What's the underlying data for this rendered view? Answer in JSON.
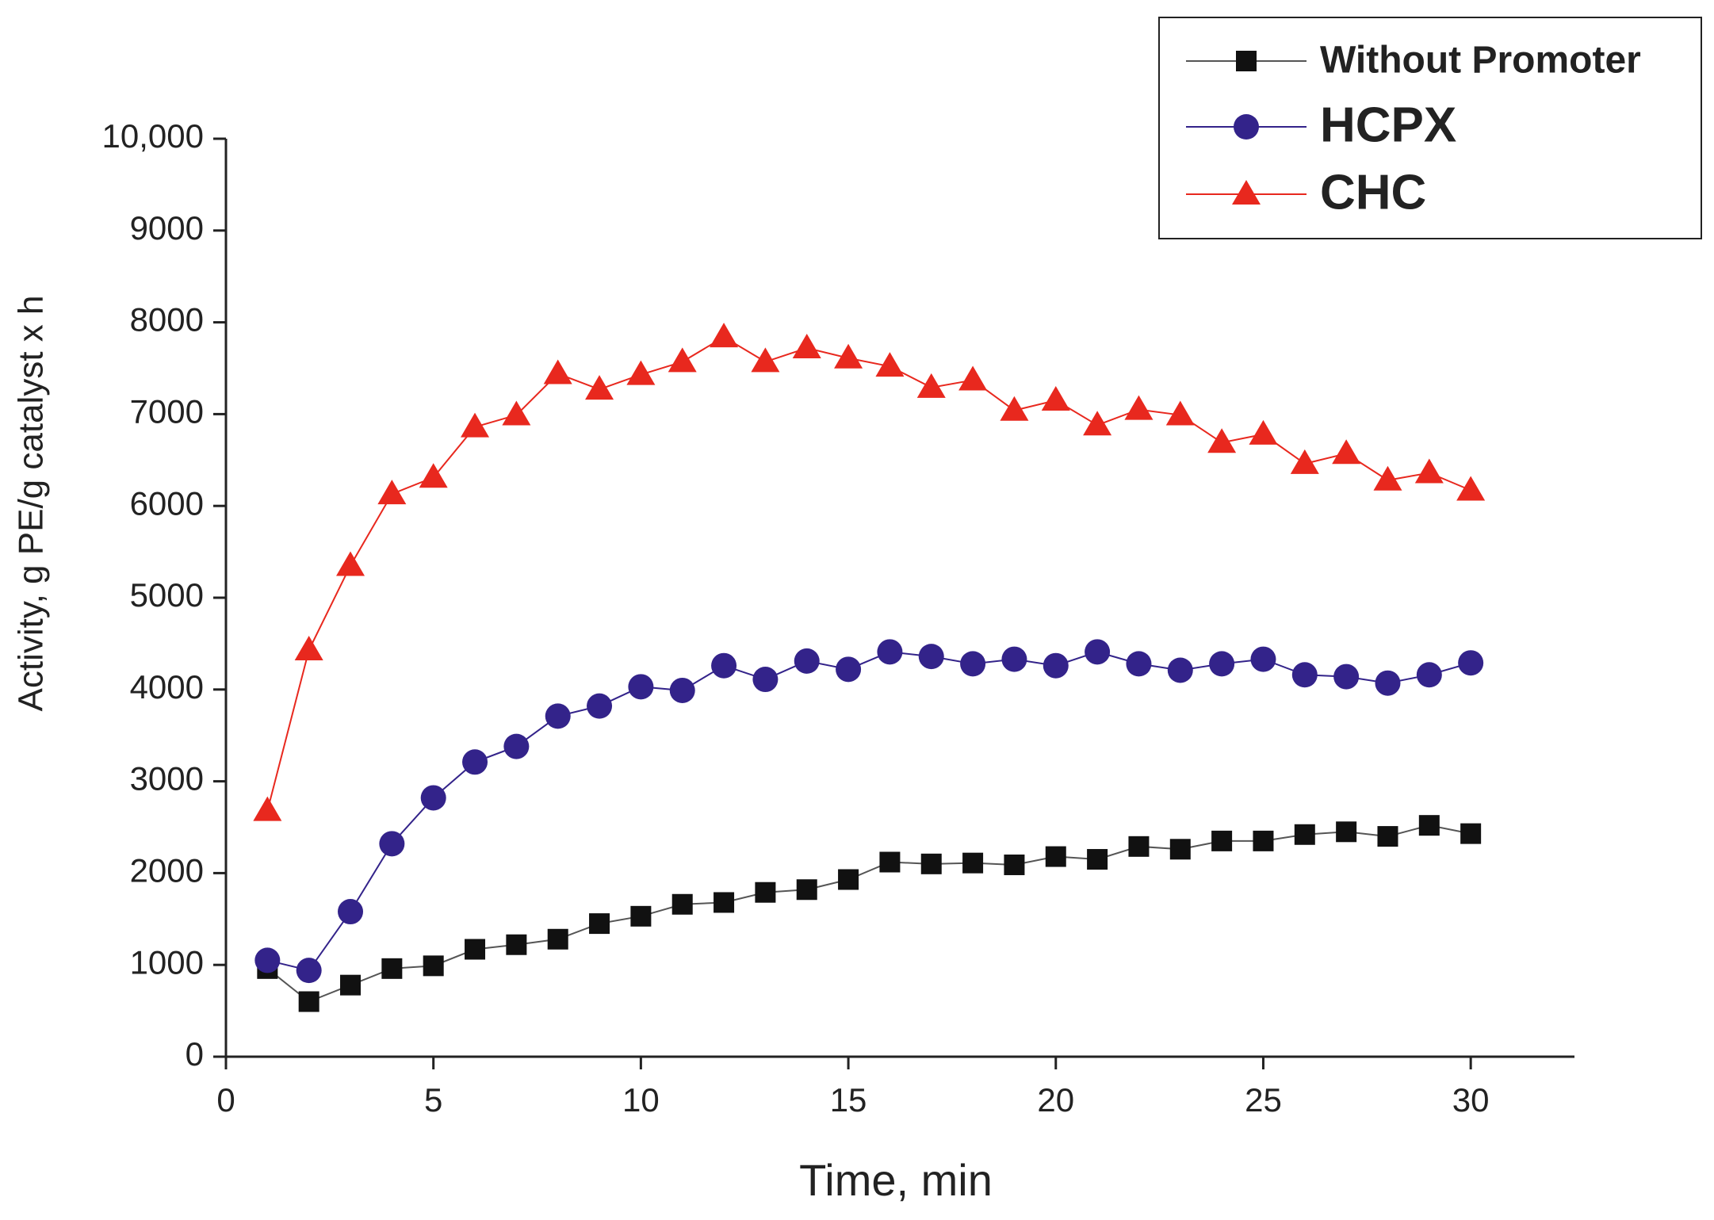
{
  "chart_data": {
    "type": "line",
    "xlabel": "Time, min",
    "ylabel": "Activity, g PE/g catalyst x h",
    "x": [
      1,
      2,
      3,
      4,
      5,
      6,
      7,
      8,
      9,
      10,
      11,
      12,
      13,
      14,
      15,
      16,
      17,
      18,
      19,
      20,
      21,
      22,
      23,
      24,
      25,
      26,
      27,
      28,
      29,
      30
    ],
    "series": [
      {
        "name": "Without Promoter",
        "color": "#111111",
        "marker": "square",
        "values": [
          960,
          600,
          780,
          960,
          990,
          1170,
          1220,
          1280,
          1450,
          1530,
          1660,
          1680,
          1790,
          1820,
          1930,
          2120,
          2100,
          2110,
          2090,
          2180,
          2150,
          2290,
          2260,
          2350,
          2350,
          2420,
          2450,
          2400,
          2520,
          2430
        ]
      },
      {
        "name": "HCPX",
        "color": "#33238a",
        "marker": "circle",
        "values": [
          1050,
          940,
          1580,
          2320,
          2820,
          3210,
          3380,
          3710,
          3820,
          4030,
          3990,
          4260,
          4110,
          4310,
          4220,
          4410,
          4360,
          4280,
          4330,
          4260,
          4410,
          4280,
          4210,
          4280,
          4330,
          4160,
          4140,
          4070,
          4160,
          4290
        ]
      },
      {
        "name": "CHC",
        "color": "#e8281e",
        "marker": "triangle",
        "values": [
          2680,
          4430,
          5350,
          6130,
          6310,
          6860,
          6990,
          7440,
          7270,
          7430,
          7570,
          7840,
          7570,
          7720,
          7610,
          7520,
          7290,
          7370,
          7040,
          7150,
          6880,
          7050,
          6990,
          6690,
          6780,
          6460,
          6570,
          6280,
          6360,
          6170
        ]
      }
    ],
    "xlim": [
      0,
      32.5
    ],
    "ylim": [
      0,
      10000
    ],
    "xticks": [
      0,
      5,
      10,
      15,
      20,
      25,
      30
    ],
    "yticks": [
      0,
      1000,
      2000,
      3000,
      4000,
      5000,
      6000,
      7000,
      8000,
      9000,
      {
        "value": 10000,
        "label": "10,000"
      }
    ],
    "grid": false,
    "legend": "upper right"
  }
}
